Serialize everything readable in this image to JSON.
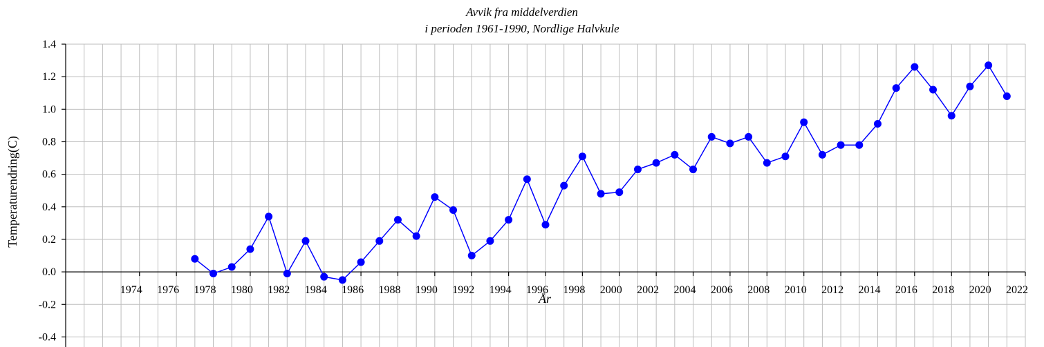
{
  "chart_data": {
    "type": "line",
    "title": [
      "Avvik fra middelverdien",
      "i perioden 1961-1990, Nordlige Halvkule"
    ],
    "xlabel": "År",
    "ylabel": "Temperaturendring(C)",
    "xlim": [
      1970,
      2022
    ],
    "ylim": [
      -0.5,
      1.4
    ],
    "xticks": [
      1974,
      1976,
      1978,
      1980,
      1982,
      1984,
      1986,
      1988,
      1990,
      1992,
      1994,
      1996,
      1998,
      2000,
      2002,
      2004,
      2006,
      2008,
      2010,
      2012,
      2014,
      2016,
      2018,
      2020,
      2022
    ],
    "yticks": [
      -0.4,
      -0.2,
      0.0,
      0.2,
      0.4,
      0.6,
      0.8,
      1.0,
      1.2,
      1.4
    ],
    "grid": true,
    "color": "#0000ff",
    "x": [
      1977,
      1978,
      1979,
      1980,
      1981,
      1982,
      1983,
      1984,
      1985,
      1986,
      1987,
      1988,
      1989,
      1990,
      1991,
      1992,
      1993,
      1994,
      1995,
      1996,
      1997,
      1998,
      1999,
      2000,
      2001,
      2002,
      2003,
      2004,
      2005,
      2006,
      2007,
      2008,
      2009,
      2010,
      2011,
      2012,
      2013,
      2014,
      2015,
      2016,
      2017,
      2018,
      2019,
      2020,
      2021
    ],
    "y": [
      0.08,
      -0.01,
      0.03,
      0.14,
      0.34,
      -0.01,
      0.19,
      -0.03,
      -0.05,
      0.06,
      0.19,
      0.32,
      0.22,
      0.46,
      0.38,
      0.1,
      0.19,
      0.32,
      0.57,
      0.29,
      0.53,
      0.71,
      0.48,
      0.49,
      0.63,
      0.67,
      0.72,
      0.63,
      0.83,
      0.79,
      0.83,
      0.67,
      0.71,
      0.92,
      0.72,
      0.78,
      0.78,
      0.91,
      1.13,
      1.26,
      1.12,
      0.96,
      1.14,
      1.27,
      1.08
    ]
  }
}
